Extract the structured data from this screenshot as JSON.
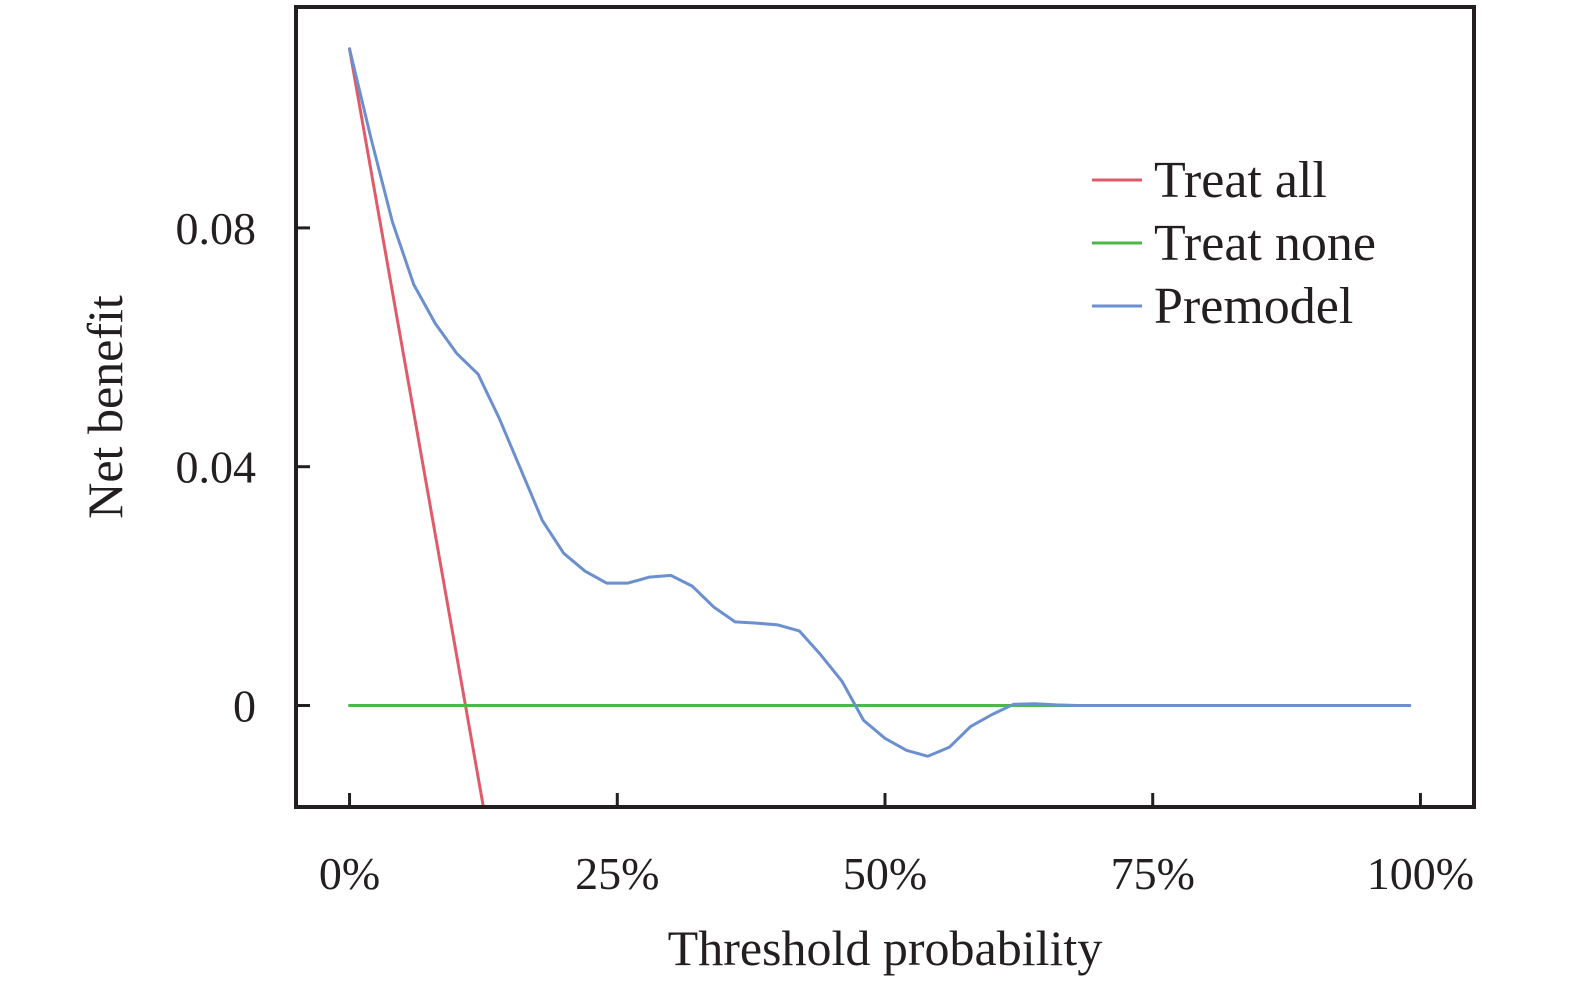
{
  "chart_data": {
    "type": "line",
    "title": "",
    "xlabel": "Threshold probability",
    "ylabel": "Net benefit",
    "xlim": [
      -0.05,
      1.05
    ],
    "ylim": [
      -0.017,
      0.117
    ],
    "x_ticks": [
      0,
      0.25,
      0.5,
      0.75,
      1.0
    ],
    "x_tick_labels": [
      "0%",
      "25%",
      "50%",
      "75%",
      "100%"
    ],
    "y_ticks": [
      0,
      0.04,
      0.08
    ],
    "y_tick_labels": [
      "0",
      "0.04",
      "0.08"
    ],
    "grid": false,
    "legend_position": "top-right",
    "series": [
      {
        "name": "Treat all",
        "color": "#e05a6a",
        "x": [
          0.0,
          0.125
        ],
        "y": [
          0.11,
          -0.017
        ]
      },
      {
        "name": "Treat none",
        "color": "#4cb847",
        "x": [
          0.0,
          0.99
        ],
        "y": [
          0.0,
          0.0
        ]
      },
      {
        "name": "Premodel",
        "color": "#6b8fcf",
        "x": [
          0.0,
          0.02,
          0.04,
          0.06,
          0.08,
          0.1,
          0.12,
          0.14,
          0.16,
          0.18,
          0.2,
          0.22,
          0.24,
          0.26,
          0.28,
          0.3,
          0.32,
          0.34,
          0.36,
          0.38,
          0.4,
          0.42,
          0.44,
          0.46,
          0.48,
          0.5,
          0.52,
          0.54,
          0.56,
          0.58,
          0.6,
          0.62,
          0.64,
          0.66,
          0.68,
          0.7,
          0.75,
          0.8,
          0.85,
          0.9,
          0.95,
          0.99
        ],
        "y": [
          0.11,
          0.095,
          0.081,
          0.0705,
          0.064,
          0.059,
          0.0555,
          0.048,
          0.0395,
          0.031,
          0.0255,
          0.0225,
          0.0205,
          0.0205,
          0.0215,
          0.0218,
          0.02,
          0.0165,
          0.014,
          0.0138,
          0.0135,
          0.0125,
          0.0085,
          0.004,
          -0.0025,
          -0.0055,
          -0.0075,
          -0.0085,
          -0.007,
          -0.0035,
          -0.0015,
          0.0002,
          0.0003,
          0.0001,
          0.0,
          0.0,
          0.0,
          0.0,
          0.0,
          0.0,
          0.0,
          0.0
        ]
      }
    ]
  }
}
